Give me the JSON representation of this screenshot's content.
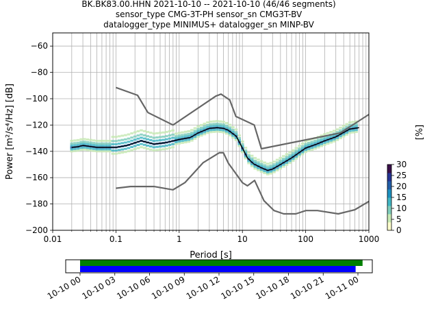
{
  "title": {
    "line1": "BK.BK83.00.HHN   2021-10-10 -- 2021-10-10  (46/46 segments)",
    "line2": "sensor_type CMG-3T-PH sensor_sn CMG3T-BV",
    "line3": "datalogger_type MINIMUS+ datalogger_sn MINP-BV"
  },
  "colorbar": {
    "label": "[%]",
    "ticks": [
      "0",
      "5",
      "10",
      "15",
      "20",
      "25",
      "30"
    ],
    "colors": [
      "#ffffcc",
      "#c7e9b4",
      "#7fcdbb",
      "#41b6c4",
      "#1d91c0",
      "#225ea8",
      "#253494",
      "#3a0f4a"
    ]
  },
  "timeline": {
    "ticks": [
      "10-10 00",
      "10-10 03",
      "10-10 06",
      "10-10 09",
      "10-10 12",
      "10-10 15",
      "10-10 18",
      "10-10 21",
      "10-11 00"
    ],
    "bars": [
      {
        "color": "#008000",
        "start_hour": 0.0,
        "end_hour": 24.4
      },
      {
        "color": "#0000ff",
        "start_hour": 0.0,
        "end_hour": 23.8
      }
    ]
  },
  "chart_data": {
    "type": "line",
    "xlabel": "Period [s]",
    "ylabel": "Power [m²/s⁴/Hz] [dB]",
    "xscale": "log",
    "xlim": [
      0.01,
      1000
    ],
    "ylim": [
      -200,
      -50
    ],
    "xticks": [
      "0.01",
      "0.1",
      "1",
      "10",
      "100",
      "1000"
    ],
    "yticks": [
      "−200",
      "−180",
      "−160",
      "−140",
      "−120",
      "−100",
      "−80",
      "−60"
    ],
    "grid": true,
    "series": [
      {
        "role": "high-noise-model",
        "color": "#666666",
        "x": [
          0.1,
          0.22,
          0.32,
          0.8,
          3.8,
          4.6,
          6.3,
          7.9,
          15.4,
          20,
          354,
          1000
        ],
        "y": [
          -91.5,
          -97.4,
          -110.5,
          -120,
          -98,
          -96.5,
          -101,
          -113.5,
          -120,
          -138,
          -126,
          -112
        ]
      },
      {
        "role": "low-noise-model",
        "color": "#666666",
        "x": [
          0.1,
          0.17,
          0.4,
          0.8,
          1.24,
          2.4,
          4.3,
          5,
          6,
          10,
          12,
          15.6,
          21.9,
          31.6,
          45,
          70,
          101,
          154,
          328,
          600,
          1000
        ],
        "y": [
          -168,
          -166.7,
          -166.7,
          -169.2,
          -163.7,
          -148.6,
          -141.1,
          -141.1,
          -149,
          -163.8,
          -166.2,
          -162.1,
          -177.5,
          -185,
          -187.5,
          -187.5,
          -185,
          -185,
          -187.5,
          -184.4,
          -178
        ]
      },
      {
        "role": "mode",
        "color": "#000000",
        "x": [
          0.02,
          0.025,
          0.03,
          0.05,
          0.1,
          0.15,
          0.25,
          0.4,
          0.6,
          1,
          1.5,
          2,
          3,
          4,
          5,
          6,
          8,
          10,
          12,
          15,
          20,
          25,
          30,
          40,
          60,
          100,
          150,
          200,
          300,
          500,
          700
        ],
        "y": [
          -137,
          -136.5,
          -135.5,
          -137,
          -137,
          -135.5,
          -132,
          -134.5,
          -133.5,
          -131,
          -129.5,
          -126,
          -122.5,
          -122,
          -122.5,
          -124,
          -128.5,
          -137.5,
          -145,
          -149.5,
          -152.5,
          -154.5,
          -153.5,
          -150,
          -145,
          -137.5,
          -134.5,
          -132,
          -129,
          -123,
          -122
        ]
      }
    ]
  }
}
